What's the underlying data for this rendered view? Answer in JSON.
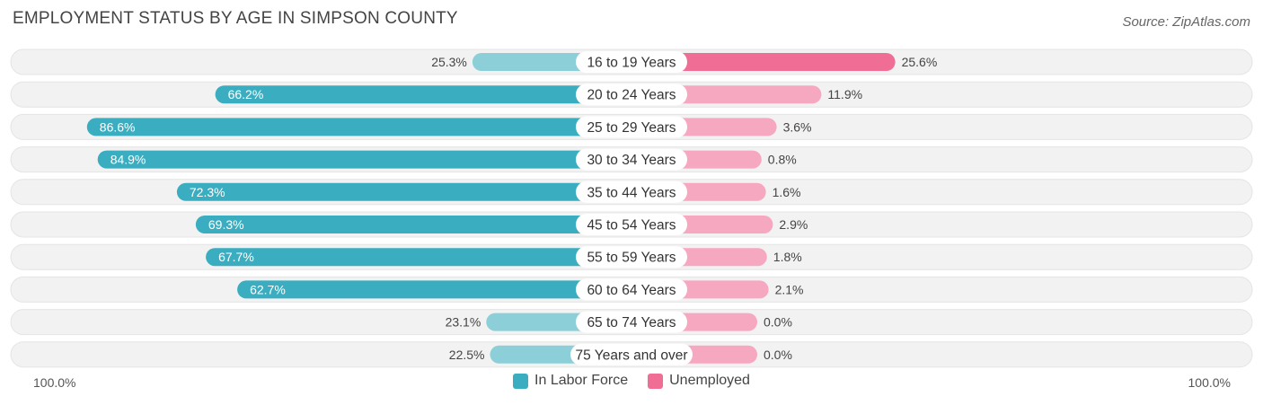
{
  "header": {
    "title": "EMPLOYMENT STATUS BY AGE IN SIMPSON COUNTY",
    "source": "Source: ZipAtlas.com"
  },
  "colors": {
    "labor_force": "#3aaec0",
    "labor_force_light": "#8ccfd8",
    "unemployed": "#f06d96",
    "unemployed_light": "#f7a8c1",
    "row_bg": "#f2f2f2"
  },
  "chart_data": {
    "type": "bar",
    "orientation": "horizontal-diverging",
    "title": "EMPLOYMENT STATUS BY AGE IN SIMPSON COUNTY",
    "categories": [
      "16 to 19 Years",
      "20 to 24 Years",
      "25 to 29 Years",
      "30 to 34 Years",
      "35 to 44 Years",
      "45 to 54 Years",
      "55 to 59 Years",
      "60 to 64 Years",
      "65 to 74 Years",
      "75 Years and over"
    ],
    "series": [
      {
        "name": "In Labor Force",
        "values": [
          25.3,
          66.2,
          86.6,
          84.9,
          72.3,
          69.3,
          67.7,
          62.7,
          23.1,
          22.5
        ],
        "labels": [
          "25.3%",
          "66.2%",
          "86.6%",
          "84.9%",
          "72.3%",
          "69.3%",
          "67.7%",
          "62.7%",
          "23.1%",
          "22.5%"
        ]
      },
      {
        "name": "Unemployed",
        "values": [
          25.6,
          11.9,
          3.6,
          0.8,
          1.6,
          2.9,
          1.8,
          2.1,
          0.0,
          0.0
        ],
        "labels": [
          "25.6%",
          "11.9%",
          "3.6%",
          "0.8%",
          "1.6%",
          "2.9%",
          "1.8%",
          "2.1%",
          "0.0%",
          "0.0%"
        ]
      }
    ],
    "axis": {
      "left_label": "100.0%",
      "right_label": "100.0%",
      "range": [
        0,
        100
      ]
    },
    "legend": {
      "position": "bottom-center",
      "items": [
        "In Labor Force",
        "Unemployed"
      ]
    }
  }
}
